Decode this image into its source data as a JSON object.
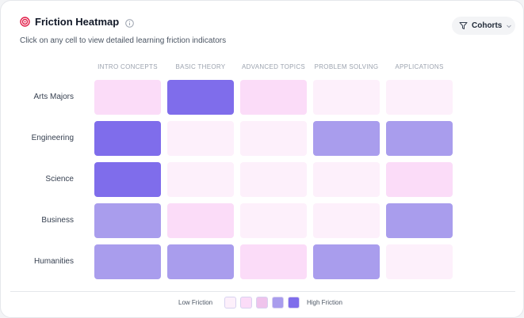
{
  "header": {
    "title": "Friction Heatmap",
    "subtitle": "Click on any cell to view detailed learning friction indicators",
    "cohorts_label": "Cohorts"
  },
  "columns": [
    "INTRO CONCEPTS",
    "BASIC THEORY",
    "ADVANCED TOPICS",
    "PROBLEM SOLVING",
    "APPLICATIONS"
  ],
  "rows": [
    {
      "label": "Arts Majors",
      "levels": [
        2,
        5,
        2,
        1,
        1
      ]
    },
    {
      "label": "Engineering",
      "levels": [
        5,
        1,
        1,
        4,
        4
      ]
    },
    {
      "label": "Science",
      "levels": [
        5,
        1,
        1,
        1,
        2
      ]
    },
    {
      "label": "Business",
      "levels": [
        4,
        2,
        1,
        1,
        4
      ]
    },
    {
      "label": "Humanities",
      "levels": [
        4,
        4,
        2,
        4,
        1
      ]
    }
  ],
  "legend": {
    "low_label": "Low Friction",
    "high_label": "High Friction",
    "colors": [
      "#fdf0fb",
      "#fbdcf8",
      "#efc4ec",
      "#a99ded",
      "#7f6deb"
    ]
  }
}
